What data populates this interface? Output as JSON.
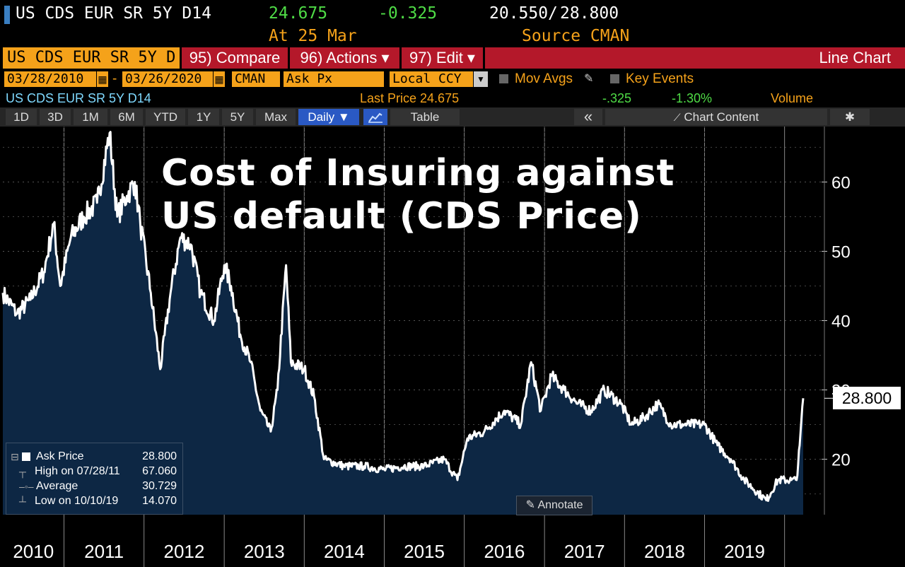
{
  "quote": {
    "ticker": "US CDS EUR SR 5Y D14",
    "last": "24.675",
    "change": "-0.325",
    "range_low": "20.550",
    "range_sep": "/",
    "range_high": "28.800",
    "at_label": "At 25 Mar",
    "source_label": "Source CMAN"
  },
  "command_bar": {
    "security": "US CDS EUR SR 5Y D",
    "compare": "95) Compare",
    "actions": "96) Actions ▾",
    "edit": "97) Edit ▾",
    "view": "Line Chart"
  },
  "settings": {
    "start_date": "03/28/2010",
    "dash": "-",
    "end_date": "03/26/2020",
    "source": "CMAN",
    "field": "Ask Px",
    "currency": "Local CCY",
    "mov_avgs": "Mov Avgs",
    "key_events": "Key Events"
  },
  "info": {
    "security": "US CDS EUR SR 5Y D14",
    "last_price": "Last Price 24.675",
    "change": "-.325",
    "pct_change": "-1.30%",
    "volume": "Volume"
  },
  "toolbar": {
    "periods": [
      "1D",
      "3D",
      "1M",
      "6M",
      "YTD",
      "1Y",
      "5Y",
      "Max"
    ],
    "frequency": "Daily ▼",
    "table": "Table",
    "collapse": "«",
    "chart_content": "Chart Content",
    "settings_glyph": "✱"
  },
  "overlay_title": [
    "Cost of Insuring against",
    "US default (CDS Price)"
  ],
  "legend": {
    "rows": [
      {
        "key": "Ask Price",
        "value": "28.800"
      },
      {
        "key": "High on 07/28/11",
        "value": "67.060"
      },
      {
        "key": "Average",
        "value": "30.729"
      },
      {
        "key": "Low on 10/10/19",
        "value": "14.070"
      }
    ]
  },
  "annotate": "Annotate",
  "last_value_label": "28.800",
  "colors": {
    "orange": "#f5a21a",
    "red_bar": "#b4182a",
    "green": "#4fdc46",
    "blue_fill": "#0d2744",
    "line": "#ffffff"
  },
  "chart_data": {
    "type": "area",
    "series": [
      {
        "name": "Ask Price",
        "points": [
          [
            "2010-03-28",
            44
          ],
          [
            "2010-06-01",
            41
          ],
          [
            "2010-08-01",
            43
          ],
          [
            "2010-10-01",
            47
          ],
          [
            "2010-11-15",
            54
          ],
          [
            "2010-12-15",
            45
          ],
          [
            "2011-02-01",
            52
          ],
          [
            "2011-04-01",
            55
          ],
          [
            "2011-06-01",
            57
          ],
          [
            "2011-07-28",
            67.06
          ],
          [
            "2011-09-01",
            55
          ],
          [
            "2011-10-15",
            58
          ],
          [
            "2011-11-20",
            60
          ],
          [
            "2011-12-15",
            54
          ],
          [
            "2012-02-01",
            44
          ],
          [
            "2012-03-15",
            33
          ],
          [
            "2012-05-01",
            44
          ],
          [
            "2012-06-15",
            52
          ],
          [
            "2012-08-01",
            51
          ],
          [
            "2012-09-15",
            44
          ],
          [
            "2012-11-15",
            40
          ],
          [
            "2013-01-01",
            48
          ],
          [
            "2013-02-01",
            45
          ],
          [
            "2013-03-15",
            38
          ],
          [
            "2013-05-01",
            34
          ],
          [
            "2013-06-15",
            27
          ],
          [
            "2013-08-01",
            24
          ],
          [
            "2013-09-01",
            30
          ],
          [
            "2013-10-10",
            48
          ],
          [
            "2013-11-01",
            34
          ],
          [
            "2014-01-01",
            33
          ],
          [
            "2014-02-15",
            29
          ],
          [
            "2014-04-01",
            20
          ],
          [
            "2014-07-01",
            19
          ],
          [
            "2014-10-01",
            19
          ],
          [
            "2015-01-01",
            18.5
          ],
          [
            "2015-04-01",
            19
          ],
          [
            "2015-07-01",
            19
          ],
          [
            "2015-10-01",
            20
          ],
          [
            "2015-12-01",
            17
          ],
          [
            "2016-01-15",
            23
          ],
          [
            "2016-04-01",
            24
          ],
          [
            "2016-07-01",
            27
          ],
          [
            "2016-09-15",
            25
          ],
          [
            "2016-11-01",
            34
          ],
          [
            "2016-12-15",
            27
          ],
          [
            "2017-02-01",
            32
          ],
          [
            "2017-04-01",
            30
          ],
          [
            "2017-06-01",
            28
          ],
          [
            "2017-08-01",
            27
          ],
          [
            "2017-10-01",
            30
          ],
          [
            "2017-12-15",
            28
          ],
          [
            "2018-02-01",
            25
          ],
          [
            "2018-04-01",
            26
          ],
          [
            "2018-06-01",
            28
          ],
          [
            "2018-08-01",
            25
          ],
          [
            "2018-10-01",
            25
          ],
          [
            "2019-01-01",
            25
          ],
          [
            "2019-03-01",
            22
          ],
          [
            "2019-05-01",
            20
          ],
          [
            "2019-07-01",
            17
          ],
          [
            "2019-10-10",
            14.07
          ],
          [
            "2019-12-01",
            17
          ],
          [
            "2020-02-01",
            17
          ],
          [
            "2020-02-25",
            17
          ],
          [
            "2020-03-10",
            22
          ],
          [
            "2020-03-26",
            28.8
          ]
        ]
      }
    ],
    "x_tick_labels": [
      "2010",
      "2011",
      "2012",
      "2013",
      "2014",
      "2015",
      "2016",
      "2017",
      "2018",
      "2019"
    ],
    "y_tick_labels": [
      "20",
      "30",
      "40",
      "50",
      "60"
    ],
    "ylim": [
      12,
      68
    ],
    "xlim": [
      "2010-03-28",
      "2020-03-26"
    ],
    "grid": true
  }
}
